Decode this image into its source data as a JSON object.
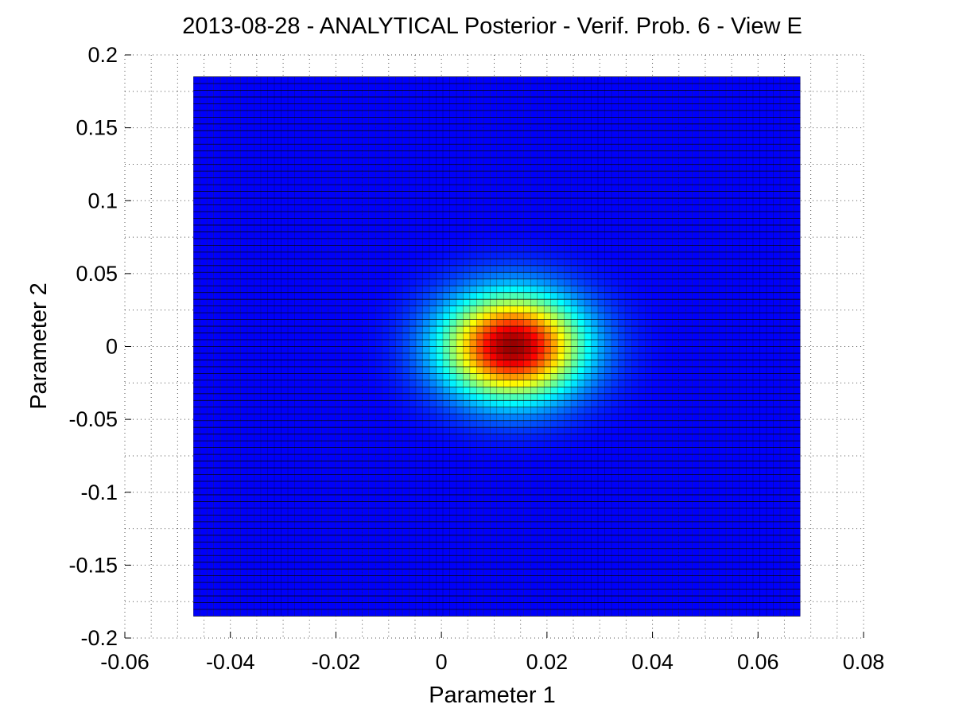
{
  "chart_data": {
    "type": "heatmap",
    "title": "2013-08-28 - ANALYTICAL Posterior - Verif. Prob. 6 - View E",
    "xlabel": "Parameter 1",
    "ylabel": "Parameter 2",
    "xlim": [
      -0.06,
      0.08
    ],
    "ylim": [
      -0.2,
      0.2
    ],
    "x_ticks": [
      "-0.06",
      "-0.04",
      "-0.02",
      "0",
      "0.02",
      "0.04",
      "0.06",
      "0.08"
    ],
    "y_ticks": [
      "-0.2",
      "-0.15",
      "-0.1",
      "-0.05",
      "0",
      "0.05",
      "0.1",
      "0.15",
      "0.2"
    ],
    "grid": true,
    "grid_style": "dotted",
    "colormap": "jet",
    "view": "top-down surface with mesh edges",
    "surface": {
      "x_range": [
        -0.047,
        0.068
      ],
      "y_range": [
        -0.185,
        0.185
      ],
      "peak": {
        "x": 0.0135,
        "y": 0.0
      },
      "spread": {
        "sigma_x": 0.0092,
        "sigma_y": 0.025
      },
      "grid_cols": 90,
      "grid_rows": 80
    },
    "colors": {
      "background": "#ffffff",
      "mesh_edge": "#000000",
      "grid": "#000000"
    }
  }
}
